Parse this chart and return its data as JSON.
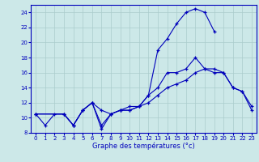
{
  "xlabel": "Graphe des températures (°c)",
  "xlim": [
    -0.5,
    23.5
  ],
  "ylim": [
    8,
    25
  ],
  "xticks": [
    0,
    1,
    2,
    3,
    4,
    5,
    6,
    7,
    8,
    9,
    10,
    11,
    12,
    13,
    14,
    15,
    16,
    17,
    18,
    19,
    20,
    21,
    22,
    23
  ],
  "yticks": [
    8,
    10,
    12,
    14,
    16,
    18,
    20,
    22,
    24
  ],
  "background_color": "#cce8e8",
  "grid_color": "#aacccc",
  "line_color": "#0000bb",
  "curve1_x": [
    0,
    1,
    2,
    3,
    4,
    5,
    6,
    7,
    8,
    9,
    10,
    11,
    12,
    13,
    14,
    15,
    16,
    17,
    18,
    19
  ],
  "curve1_y": [
    10.5,
    9.0,
    10.5,
    10.5,
    9.0,
    11.0,
    12.0,
    8.5,
    10.5,
    11.0,
    11.0,
    11.5,
    13.0,
    19.0,
    20.5,
    22.5,
    24.0,
    24.5,
    24.0,
    21.5
  ],
  "curve2_x": [
    0,
    3,
    4,
    5,
    6,
    7,
    8,
    9,
    10,
    11,
    12,
    13,
    14,
    15,
    16,
    17,
    18,
    19,
    20,
    21,
    22,
    23
  ],
  "curve2_y": [
    10.5,
    10.5,
    9.0,
    11.0,
    12.0,
    9.0,
    10.5,
    11.0,
    11.0,
    11.5,
    13.0,
    14.0,
    16.0,
    16.0,
    16.5,
    18.0,
    16.5,
    16.0,
    16.0,
    14.0,
    13.5,
    11.5
  ],
  "curve3_x": [
    0,
    3,
    4,
    5,
    6,
    7,
    8,
    9,
    10,
    11,
    12,
    13,
    14,
    15,
    16,
    17,
    18,
    19,
    20,
    21,
    22,
    23
  ],
  "curve3_y": [
    10.5,
    10.5,
    9.0,
    11.0,
    12.0,
    11.0,
    10.5,
    11.0,
    11.5,
    11.5,
    12.0,
    13.0,
    14.0,
    14.5,
    15.0,
    16.0,
    16.5,
    16.5,
    16.0,
    14.0,
    13.5,
    11.0
  ]
}
